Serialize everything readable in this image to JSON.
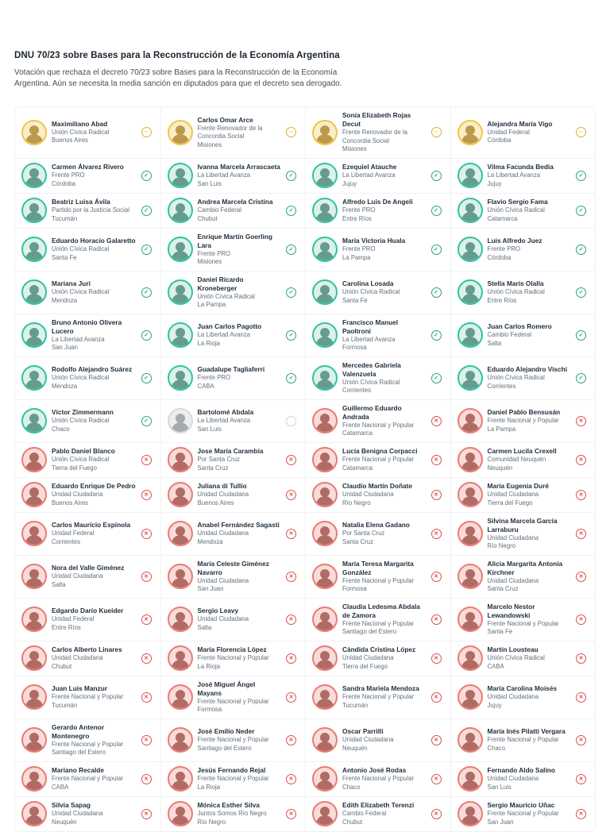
{
  "header": {
    "title": "DNU 70/23 sobre Bases para la Reconstrucción de la Economía Argentina",
    "subtitle": "Votación que rechaza el decreto 70/23 sobre Bases para la Reconstrucción de la Economía Argentina. Aún se necesita la media sanción en diputados para que el decreto sea derogado."
  },
  "vote_colors": {
    "afirmativo": "#2ec4a0",
    "negativo": "#ec7a72",
    "abstencion": "#f0c64a",
    "ausente": "#d8dadd"
  },
  "vote_icons": {
    "afirmativo": {
      "name": "check-circle-icon",
      "glyph": "✓"
    },
    "negativo": {
      "name": "x-circle-icon",
      "glyph": "✕"
    },
    "abstencion": {
      "name": "abstain-circle-icon",
      "glyph": "–"
    },
    "ausente": {
      "name": "empty-circle-icon",
      "glyph": ""
    }
  },
  "members": [
    {
      "name": "Maximiliano Abad",
      "party": "Unión Cívica Radical",
      "province": "Buenos Aires",
      "vote": "abstencion"
    },
    {
      "name": "Carlos Omar Arce",
      "party": "Frente Renovador de la Concordia Social",
      "province": "Misiones",
      "vote": "abstencion"
    },
    {
      "name": "Sonia Elizabeth Rojas Decut",
      "party": "Frente Renovador de la Concordia Social",
      "province": "Misiones",
      "vote": "abstencion"
    },
    {
      "name": "Alejandra María Vigo",
      "party": "Unidad Federal",
      "province": "Córdoba",
      "vote": "abstencion"
    },
    {
      "name": "Carmen Álvarez Rivero",
      "party": "Frente PRO",
      "province": "Córdoba",
      "vote": "afirmativo"
    },
    {
      "name": "Ivanna Marcela Arrascaeta",
      "party": "La Libertad Avanza",
      "province": "San Luis",
      "vote": "afirmativo"
    },
    {
      "name": "Ezequiel Atauche",
      "party": "La Libertad Avanza",
      "province": "Jujuy",
      "vote": "afirmativo"
    },
    {
      "name": "Vilma Facunda Bedia",
      "party": "La Libertad Avanza",
      "province": "Jujuy",
      "vote": "afirmativo"
    },
    {
      "name": "Beatriz Luisa Ávila",
      "party": "Partido por la Justicia Social",
      "province": "Tucumán",
      "vote": "afirmativo"
    },
    {
      "name": "Andrea Marcela Cristina",
      "party": "Cambio Federal",
      "province": "Chubut",
      "vote": "afirmativo"
    },
    {
      "name": "Alfredo Luis De Angeli",
      "party": "Frente PRO",
      "province": "Entre Ríos",
      "vote": "afirmativo"
    },
    {
      "name": "Flavio Sergio Fama",
      "party": "Unión Cívica Radical",
      "province": "Catamarca",
      "vote": "afirmativo"
    },
    {
      "name": "Eduardo Horacio Galaretto",
      "party": "Unión Cívica Radical",
      "province": "Santa Fe",
      "vote": "afirmativo"
    },
    {
      "name": "Enrique Martín Goerling Lara",
      "party": "Frente PRO",
      "province": "Misiones",
      "vote": "afirmativo"
    },
    {
      "name": "María Victoria Huala",
      "party": "Frente PRO",
      "province": "La Pampa",
      "vote": "afirmativo"
    },
    {
      "name": "Luis Alfredo Juez",
      "party": "Frente PRO",
      "province": "Córdoba",
      "vote": "afirmativo"
    },
    {
      "name": "Mariana Juri",
      "party": "Unión Cívica Radical",
      "province": "Mendoza",
      "vote": "afirmativo"
    },
    {
      "name": "Daniel Ricardo Kroneberger",
      "party": "Unión Cívica Radical",
      "province": "La Pampa",
      "vote": "afirmativo"
    },
    {
      "name": "Carolina Losada",
      "party": "Unión Cívica Radical",
      "province": "Santa Fe",
      "vote": "afirmativo"
    },
    {
      "name": "Stella Maris Olalla",
      "party": "Unión Cívica Radical",
      "province": "Entre Ríos",
      "vote": "afirmativo"
    },
    {
      "name": "Bruno Antonio Olivera Lucero",
      "party": "La Libertad Avanza",
      "province": "San Juan",
      "vote": "afirmativo"
    },
    {
      "name": "Juan Carlos Pagotto",
      "party": "La Libertad Avanza",
      "province": "La Rioja",
      "vote": "afirmativo"
    },
    {
      "name": "Francisco Manuel Paoltroni",
      "party": "La Libertad Avanza",
      "province": "Formosa",
      "vote": "afirmativo"
    },
    {
      "name": "Juan Carlos Romero",
      "party": "Cambio Federal",
      "province": "Salta",
      "vote": "afirmativo"
    },
    {
      "name": "Rodolfo Alejandro Suárez",
      "party": "Unión Cívica Radical",
      "province": "Mendoza",
      "vote": "afirmativo"
    },
    {
      "name": "Guadalupe Tagliaferri",
      "party": "Frente PRO",
      "province": "CABA",
      "vote": "afirmativo"
    },
    {
      "name": "Mercedes Gabriela Valenzuela",
      "party": "Unión Cívica Radical",
      "province": "Corrientes",
      "vote": "afirmativo"
    },
    {
      "name": "Eduardo Alejandro Vischi",
      "party": "Unión Cívica Radical",
      "province": "Corrientes",
      "vote": "afirmativo"
    },
    {
      "name": "Víctor Zimmermann",
      "party": "Unión Cívica Radical",
      "province": "Chaco",
      "vote": "afirmativo"
    },
    {
      "name": "Bartolomé Abdala",
      "party": "La Libertad Avanza",
      "province": "San Luis",
      "vote": "ausente"
    },
    {
      "name": "Guillermo Eduardo Andrada",
      "party": "Frente Nacional y Popular",
      "province": "Catamarca",
      "vote": "negativo"
    },
    {
      "name": "Daniel Pablo Bensusán",
      "party": "Frente Nacional y Popular",
      "province": "La Pampa",
      "vote": "negativo"
    },
    {
      "name": "Pablo Daniel Blanco",
      "party": "Unión Cívica Radical",
      "province": "Tierra del Fuego",
      "vote": "negativo"
    },
    {
      "name": "Jose María Carambia",
      "party": "Por Santa Cruz",
      "province": "Santa Cruz",
      "vote": "negativo"
    },
    {
      "name": "Lucía Benigna Corpacci",
      "party": "Frente Nacional y Popular",
      "province": "Catamarca",
      "vote": "negativo"
    },
    {
      "name": "Carmen Lucila Crexell",
      "party": "Comunidad Neuquén",
      "province": "Neuquén",
      "vote": "negativo"
    },
    {
      "name": "Eduardo Enrique De Pedro",
      "party": "Unidad Ciudadana",
      "province": "Buenos Aires",
      "vote": "negativo"
    },
    {
      "name": "Juliana di Tullio",
      "party": "Unidad Ciudadana",
      "province": "Buenos Aires",
      "vote": "negativo"
    },
    {
      "name": "Claudio Martín Doñate",
      "party": "Unidad Ciudadana",
      "province": "Río Negro",
      "vote": "negativo"
    },
    {
      "name": "María Eugenia Duré",
      "party": "Unidad Ciudadana",
      "province": "Tierra del Fuego",
      "vote": "negativo"
    },
    {
      "name": "Carlos Mauricio Espínola",
      "party": "Unidad Federal",
      "province": "Corrientes",
      "vote": "negativo"
    },
    {
      "name": "Anabel Fernández Sagasti",
      "party": "Unidad Ciudadana",
      "province": "Mendoza",
      "vote": "negativo"
    },
    {
      "name": "Natalia Elena Gadano",
      "party": "Por Santa Cruz",
      "province": "Santa Cruz",
      "vote": "negativo"
    },
    {
      "name": "Silvina Marcela García Larraburu",
      "party": "Unidad Ciudadana",
      "province": "Río Negro",
      "vote": "negativo"
    },
    {
      "name": "Nora del Valle Giménez",
      "party": "Unidad Ciudadana",
      "province": "Salta",
      "vote": "negativo"
    },
    {
      "name": "María Celeste Giménez Navarro",
      "party": "Unidad Ciudadana",
      "province": "San Juan",
      "vote": "negativo"
    },
    {
      "name": "María Teresa Margarita González",
      "party": "Frente Nacional y Popular",
      "province": "Formosa",
      "vote": "negativo"
    },
    {
      "name": "Alicia Margarita Antonia Kirchner",
      "party": "Unidad Ciudadana",
      "province": "Santa Cruz",
      "vote": "negativo"
    },
    {
      "name": "Edgardo Darío Kueider",
      "party": "Unidad Federal",
      "province": "Entre Ríos",
      "vote": "negativo"
    },
    {
      "name": "Sergio Leavy",
      "party": "Unidad Ciudadana",
      "province": "Salta",
      "vote": "negativo"
    },
    {
      "name": "Claudia Ledesma Abdala de Zamora",
      "party": "Frente Nacional y Popular",
      "province": "Santiago del Estero",
      "vote": "negativo"
    },
    {
      "name": "Marcelo Nestor Lewandowski",
      "party": "Frente Nacional y Popular",
      "province": "Santa Fe",
      "vote": "negativo"
    },
    {
      "name": "Carlos Alberto Linares",
      "party": "Unidad Ciudadana",
      "province": "Chubut",
      "vote": "negativo"
    },
    {
      "name": "María Florencia López",
      "party": "Frente Nacional y Popular",
      "province": "La Rioja",
      "vote": "negativo"
    },
    {
      "name": "Cándida Cristina López",
      "party": "Unidad Ciudadana",
      "province": "Tierra del Fuego",
      "vote": "negativo"
    },
    {
      "name": "Martín Lousteau",
      "party": "Unión Cívica Radical",
      "province": "CABA",
      "vote": "negativo"
    },
    {
      "name": "Juan Luis Manzur",
      "party": "Frente Nacional y Popular",
      "province": "Tucumán",
      "vote": "negativo"
    },
    {
      "name": "José Miguel Ángel Mayans",
      "party": "Frente Nacional y Popular",
      "province": "Formosa",
      "vote": "negativo"
    },
    {
      "name": "Sandra Mariela Mendoza",
      "party": "Frente Nacional y Popular",
      "province": "Tucumán",
      "vote": "negativo"
    },
    {
      "name": "María Carolina Moisés",
      "party": "Unidad Ciudadana",
      "province": "Jujuy",
      "vote": "negativo"
    },
    {
      "name": "Gerardo Antenor Montenegro",
      "party": "Frente Nacional y Popular",
      "province": "Santiago del Estero",
      "vote": "negativo"
    },
    {
      "name": "José Emilio Neder",
      "party": "Frente Nacional y Popular",
      "province": "Santiago del Estero",
      "vote": "negativo"
    },
    {
      "name": "Oscar Parrilli",
      "party": "Unidad Ciudadana",
      "province": "Neuquén",
      "vote": "negativo"
    },
    {
      "name": "María Inés Pilatti Vergara",
      "party": "Frente Nacional y Popular",
      "province": "Chaco",
      "vote": "negativo"
    },
    {
      "name": "Mariano Recalde",
      "party": "Frente Nacional y Popular",
      "province": "CABA",
      "vote": "negativo"
    },
    {
      "name": "Jesús Fernando Rejal",
      "party": "Frente Nacional y Popular",
      "province": "La Rioja",
      "vote": "negativo"
    },
    {
      "name": "Antonio José Rodas",
      "party": "Frente Nacional y Popular",
      "province": "Chaco",
      "vote": "negativo"
    },
    {
      "name": "Fernando Aldo Salino",
      "party": "Unidad Ciudadana",
      "province": "San Luis",
      "vote": "negativo"
    },
    {
      "name": "Silvia Sapag",
      "party": "Unidad Ciudadana",
      "province": "Neuquén",
      "vote": "negativo"
    },
    {
      "name": "Mónica Esther Silva",
      "party": "Juntos Somos Río Negro",
      "province": "Río Negro",
      "vote": "negativo"
    },
    {
      "name": "Edith Elizabeth Terenzi",
      "party": "Cambio Federal",
      "province": "Chubut",
      "vote": "negativo"
    },
    {
      "name": "Sergio Mauricio Uñac",
      "party": "Frente Nacional y Popular",
      "province": "San Juan",
      "vote": "negativo"
    }
  ]
}
